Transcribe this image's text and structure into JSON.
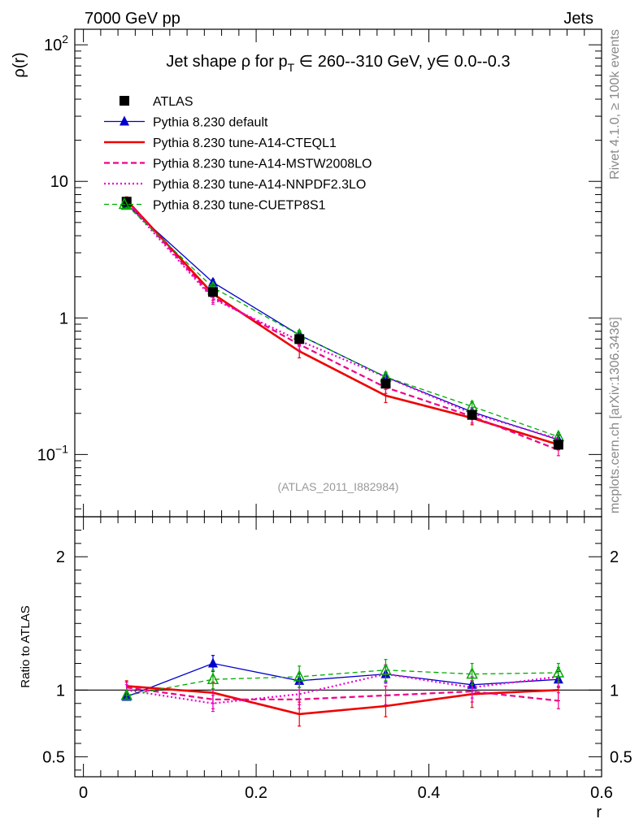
{
  "header": {
    "left": "7000 GeV pp",
    "right": "Jets"
  },
  "side": {
    "top": "Rivet 4.1.0, ≥ 100k events",
    "bottom": "mcplots.cern.ch [arXiv:1306.3436]"
  },
  "chart_data": [
    {
      "type": "line",
      "title_parts": {
        "pre": "Jet shape ρ for p",
        "sub": "T",
        "post": " ∈ 260--310 GeV, y∈ 0.0--0.3"
      },
      "ylabel": "ρ(r)",
      "yscale": "log",
      "ylim": [
        0.035,
        130
      ],
      "xlim": [
        -0.01,
        0.6
      ],
      "yticks": [
        {
          "v": 0.1,
          "base": "10",
          "exp": "−1"
        },
        {
          "v": 1,
          "base": "1",
          "exp": ""
        },
        {
          "v": 10,
          "base": "10",
          "exp": ""
        },
        {
          "v": 100,
          "base": "10",
          "exp": "2"
        }
      ],
      "watermark": "(ATLAS_2011_I882984)",
      "x": [
        0.05,
        0.15,
        0.25,
        0.35,
        0.45,
        0.55
      ],
      "series": [
        {
          "name": "ATLAS",
          "color": "#000000",
          "style": "data",
          "values": [
            7.1,
            1.55,
            0.7,
            0.33,
            0.195,
            0.118
          ],
          "errors": [
            0.15,
            0.06,
            0.04,
            0.02,
            0.012,
            0.008
          ]
        },
        {
          "name": "Pythia 8.230 default",
          "color": "#0000cc",
          "style": "solid-thin",
          "marker": "triangle",
          "values": [
            6.8,
            1.82,
            0.75,
            0.37,
            0.205,
            0.128
          ],
          "errors": [
            0.3,
            0.1,
            0.05,
            0.03,
            0.015,
            0.01
          ]
        },
        {
          "name": "Pythia 8.230 tune-A14-CTEQL1",
          "color": "#ee0000",
          "style": "solid-thick",
          "values": [
            7.3,
            1.5,
            0.57,
            0.27,
            0.185,
            0.118
          ],
          "errors": [
            0.4,
            0.15,
            0.06,
            0.03,
            0.02,
            0.01
          ]
        },
        {
          "name": "Pythia 8.230 tune-A14-MSTW2008LO",
          "color": "#ee0088",
          "style": "dashed",
          "values": [
            7.2,
            1.42,
            0.64,
            0.31,
            0.19,
            0.108
          ],
          "errors": [
            0.4,
            0.12,
            0.06,
            0.03,
            0.02,
            0.01
          ]
        },
        {
          "name": "Pythia 8.230 tune-A14-NNPDF2.3LO",
          "color": "#ee00cc",
          "style": "dotted",
          "values": [
            7.0,
            1.38,
            0.68,
            0.37,
            0.2,
            0.13
          ],
          "errors": [
            0.4,
            0.12,
            0.06,
            0.03,
            0.02,
            0.01
          ]
        },
        {
          "name": "Pythia 8.230 tune-CUETP8S1",
          "color": "#00aa00",
          "style": "dashed-thin",
          "marker": "triangle-open",
          "values": [
            6.7,
            1.67,
            0.75,
            0.37,
            0.225,
            0.135
          ],
          "errors": [
            0.3,
            0.12,
            0.06,
            0.03,
            0.02,
            0.01
          ]
        }
      ]
    },
    {
      "type": "line",
      "ylabel": "Ratio to ATLAS",
      "xlabel": "r",
      "ylim": [
        0.35,
        2.3
      ],
      "xlim": [
        -0.01,
        0.6
      ],
      "yticks": [
        0.5,
        1,
        2
      ],
      "yticklabels": [
        "0.5",
        "1",
        "2"
      ],
      "xticks": [
        0,
        0.2,
        0.4,
        0.6
      ],
      "xticklabels": [
        "0",
        "0.2",
        "0.4",
        "0.6"
      ],
      "x": [
        0.05,
        0.15,
        0.25,
        0.35,
        0.45,
        0.55
      ],
      "series": [
        {
          "name": "Pythia 8.230 default",
          "values": [
            0.95,
            1.2,
            1.07,
            1.12,
            1.04,
            1.08
          ],
          "errors": [
            0.02,
            0.06,
            0.05,
            0.06,
            0.05,
            0.06
          ]
        },
        {
          "name": "Pythia 8.230 tune-A14-CTEQL1",
          "values": [
            1.03,
            0.98,
            0.82,
            0.88,
            0.97,
            1.0
          ],
          "errors": [
            0.04,
            0.08,
            0.09,
            0.08,
            0.1,
            0.08
          ]
        },
        {
          "name": "Pythia 8.230 tune-A14-MSTW2008LO",
          "values": [
            1.02,
            0.93,
            0.93,
            0.96,
            0.99,
            0.92
          ],
          "errors": [
            0.04,
            0.07,
            0.07,
            0.07,
            0.08,
            0.06
          ]
        },
        {
          "name": "Pythia 8.230 tune-A14-NNPDF2.3LO",
          "values": [
            1.0,
            0.9,
            0.97,
            1.12,
            1.02,
            1.1
          ],
          "errors": [
            0.04,
            0.06,
            0.08,
            0.07,
            0.08,
            0.07
          ]
        },
        {
          "name": "Pythia 8.230 tune-CUETP8S1",
          "values": [
            0.96,
            1.08,
            1.1,
            1.15,
            1.12,
            1.13
          ],
          "errors": [
            0.02,
            0.07,
            0.08,
            0.08,
            0.08,
            0.07
          ]
        }
      ]
    }
  ]
}
